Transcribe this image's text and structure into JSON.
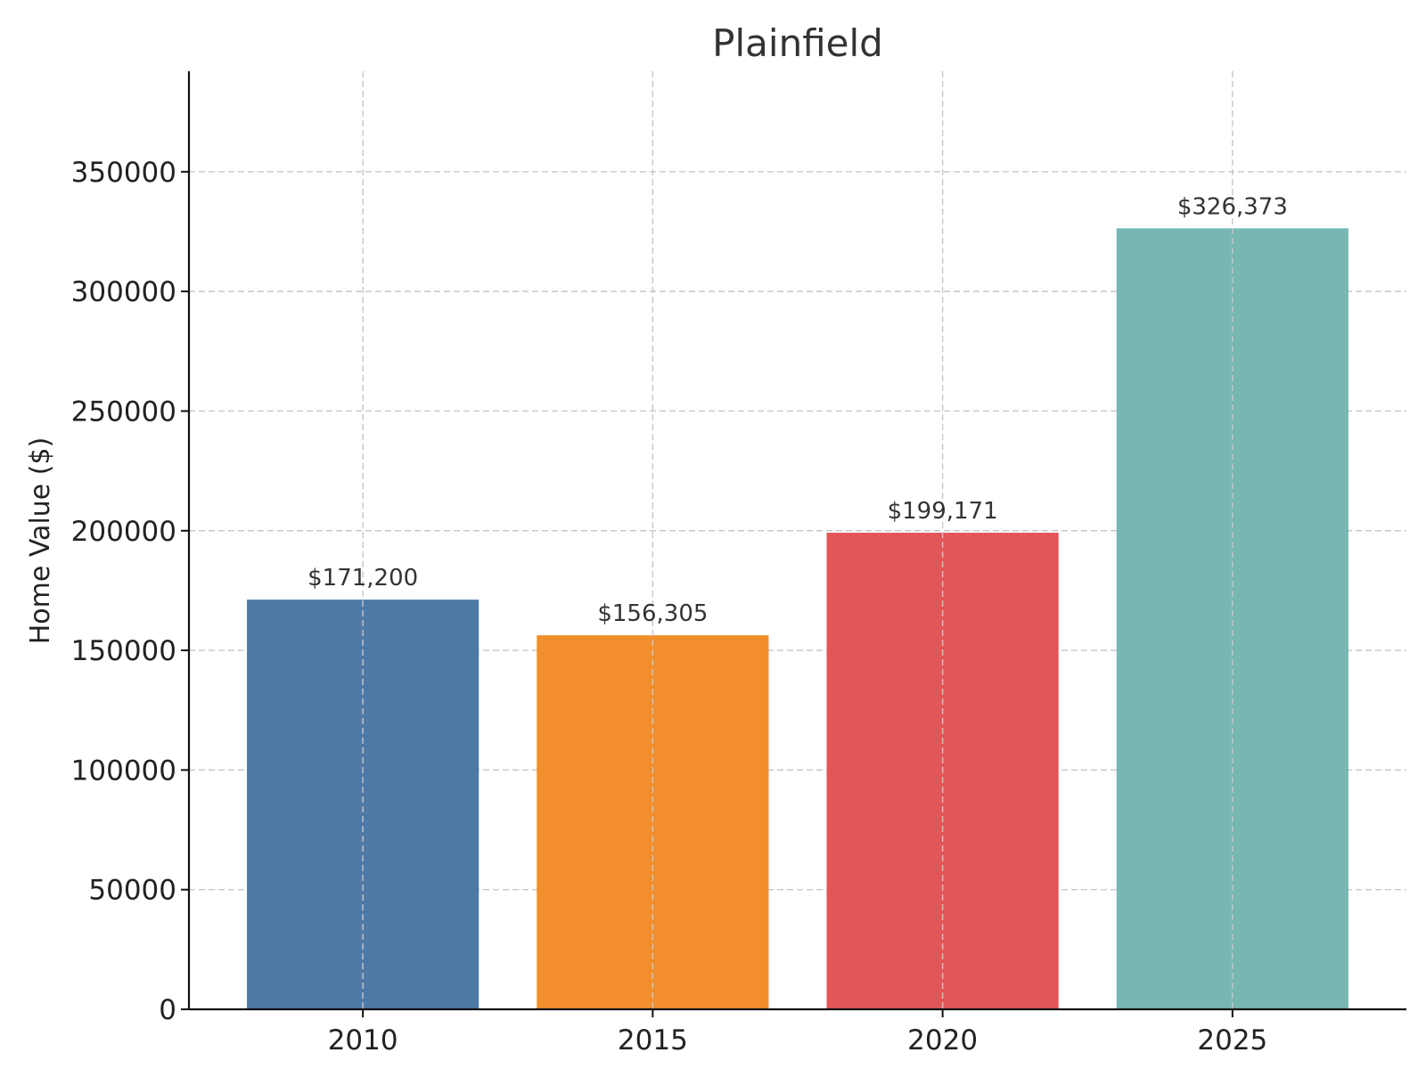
{
  "chart_data": {
    "type": "bar",
    "title": "Plainfield",
    "xlabel": "",
    "ylabel": "Home Value ($)",
    "categories": [
      "2010",
      "2015",
      "2020",
      "2025"
    ],
    "values": [
      171200,
      156305,
      199171,
      326373
    ],
    "data_labels": [
      "$171,200",
      "$156,305",
      "$199,171",
      "$326,373"
    ],
    "bar_colors": [
      "#4e79a7",
      "#f28e2b",
      "#e15759",
      "#76b7b2"
    ],
    "ylim": [
      0,
      392000
    ],
    "yticks": [
      0,
      50000,
      100000,
      150000,
      200000,
      250000,
      300000,
      350000
    ],
    "ytick_labels": [
      "0",
      "50000",
      "100000",
      "150000",
      "200000",
      "250000",
      "300000",
      "350000"
    ],
    "grid": true,
    "legend": false
  }
}
